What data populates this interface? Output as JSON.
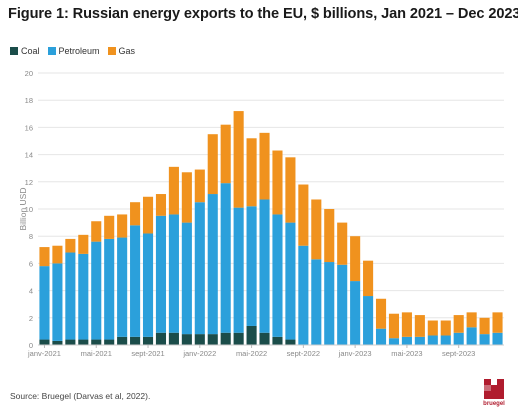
{
  "chart_data": {
    "type": "bar",
    "stacked": true,
    "title": "Figure 1: Russian energy exports to the EU, $ billions, Jan 2021 – Dec 2023",
    "ylabel": "Billion USD",
    "ylim": [
      0,
      20
    ],
    "yticks": [
      0,
      2,
      4,
      6,
      8,
      10,
      12,
      14,
      16,
      18,
      20
    ],
    "grid": true,
    "legend_position": "top-left",
    "x_tick_labels": [
      {
        "index": 0,
        "label": "janv-2021"
      },
      {
        "index": 4,
        "label": "mai-2021"
      },
      {
        "index": 8,
        "label": "sept-2021"
      },
      {
        "index": 12,
        "label": "janv-2022"
      },
      {
        "index": 16,
        "label": "mai-2022"
      },
      {
        "index": 20,
        "label": "sept-2022"
      },
      {
        "index": 24,
        "label": "janv-2023"
      },
      {
        "index": 28,
        "label": "mai-2023"
      },
      {
        "index": 32,
        "label": "sept-2023"
      }
    ],
    "categories": [
      "2021-01",
      "2021-02",
      "2021-03",
      "2021-04",
      "2021-05",
      "2021-06",
      "2021-07",
      "2021-08",
      "2021-09",
      "2021-10",
      "2021-11",
      "2021-12",
      "2022-01",
      "2022-02",
      "2022-03",
      "2022-04",
      "2022-05",
      "2022-06",
      "2022-07",
      "2022-08",
      "2022-09",
      "2022-10",
      "2022-11",
      "2022-12",
      "2023-01",
      "2023-02",
      "2023-03",
      "2023-04",
      "2023-05",
      "2023-06",
      "2023-07",
      "2023-08",
      "2023-09",
      "2023-10",
      "2023-11",
      "2023-12"
    ],
    "series": [
      {
        "name": "Coal",
        "color": "#1b4d4a",
        "values": [
          0.4,
          0.3,
          0.4,
          0.4,
          0.4,
          0.4,
          0.6,
          0.6,
          0.6,
          0.9,
          0.9,
          0.8,
          0.8,
          0.8,
          0.9,
          0.9,
          1.4,
          0.9,
          0.6,
          0.4,
          0,
          0,
          0,
          0,
          0,
          0,
          0,
          0,
          0,
          0,
          0,
          0,
          0,
          0,
          0,
          0
        ]
      },
      {
        "name": "Petroleum",
        "color": "#2ba0db",
        "values": [
          5.4,
          5.7,
          6.4,
          6.3,
          7.2,
          7.4,
          7.3,
          8.2,
          7.6,
          8.6,
          8.7,
          8.2,
          9.7,
          10.3,
          11.0,
          9.2,
          8.8,
          9.8,
          9.0,
          8.6,
          7.3,
          6.3,
          6.1,
          5.9,
          4.7,
          3.6,
          1.2,
          0.5,
          0.6,
          0.6,
          0.7,
          0.7,
          0.9,
          1.3,
          0.8,
          0.9
        ]
      },
      {
        "name": "Gas",
        "color": "#f0921e",
        "values": [
          1.4,
          1.3,
          1.0,
          1.4,
          1.5,
          1.7,
          1.7,
          1.7,
          2.7,
          1.6,
          3.5,
          3.7,
          2.4,
          4.4,
          4.3,
          7.1,
          5.0,
          4.9,
          4.7,
          4.8,
          4.5,
          4.4,
          3.9,
          3.1,
          3.3,
          2.6,
          2.2,
          1.8,
          1.8,
          1.6,
          1.1,
          1.1,
          1.3,
          1.1,
          1.2,
          1.5
        ]
      }
    ]
  },
  "source": "Source: Bruegel (Darvas et al, 2022).",
  "logo_text": "bruegel",
  "colors": {
    "logo": "#b01c2e",
    "grid": "#e6e6e6",
    "axis_text": "#888888"
  }
}
